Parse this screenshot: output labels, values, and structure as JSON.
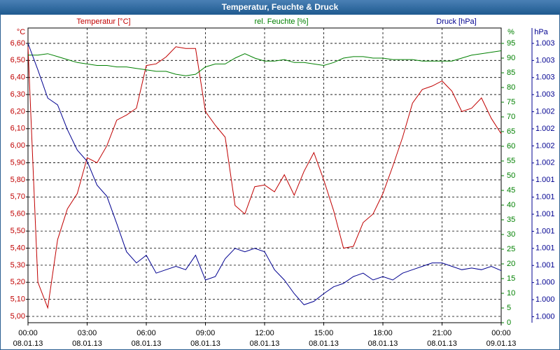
{
  "chart_data": {
    "type": "line",
    "title": "Temperatur, Feuchte & Druck",
    "x": [
      0,
      0.5,
      1,
      1.5,
      2,
      2.5,
      3,
      3.5,
      4,
      4.5,
      5,
      5.5,
      6,
      6.5,
      7,
      7.5,
      8,
      8.5,
      9,
      9.5,
      10,
      10.5,
      11,
      11.5,
      12,
      12.5,
      13,
      13.5,
      14,
      14.5,
      15,
      15.5,
      16,
      16.5,
      17,
      17.5,
      18,
      18.5,
      19,
      19.5,
      20,
      20.5,
      21,
      21.5,
      22,
      22.5,
      23,
      23.5,
      24
    ],
    "xlim": [
      0,
      24
    ],
    "xticks": [
      {
        "value": 0,
        "label": "00:00"
      },
      {
        "value": 3,
        "label": "03:00"
      },
      {
        "value": 6,
        "label": "06:00"
      },
      {
        "value": 9,
        "label": "09:00"
      },
      {
        "value": 12,
        "label": "12:00"
      },
      {
        "value": 15,
        "label": "15:00"
      },
      {
        "value": 18,
        "label": "18:00"
      },
      {
        "value": 21,
        "label": "21:00"
      },
      {
        "value": 24,
        "label": "00:00"
      }
    ],
    "xtick_dates": [
      "08.01.13",
      "08.01.13",
      "08.01.13",
      "08.01.13",
      "08.01.13",
      "08.01.13",
      "08.01.13",
      "08.01.13",
      "09.01.13"
    ],
    "y_unit": "°C",
    "y2_unit": "%",
    "y3_unit": "hPa",
    "ylim": [
      4.963,
      6.69
    ],
    "yticks": [
      {
        "value": 5.0,
        "label": "5,00"
      },
      {
        "value": 5.1,
        "label": "5,10"
      },
      {
        "value": 5.2,
        "label": "5,20"
      },
      {
        "value": 5.3,
        "label": "5,30"
      },
      {
        "value": 5.4,
        "label": "5,40"
      },
      {
        "value": 5.5,
        "label": "5,50"
      },
      {
        "value": 5.6,
        "label": "5,60"
      },
      {
        "value": 5.7,
        "label": "5,70"
      },
      {
        "value": 5.8,
        "label": "5,80"
      },
      {
        "value": 5.9,
        "label": "5,90"
      },
      {
        "value": 6.0,
        "label": "6,00"
      },
      {
        "value": 6.1,
        "label": "6,10"
      },
      {
        "value": 6.2,
        "label": "6,20"
      },
      {
        "value": 6.3,
        "label": "6,30"
      },
      {
        "value": 6.4,
        "label": "6,40"
      },
      {
        "value": 6.5,
        "label": "6,50"
      },
      {
        "value": 6.6,
        "label": "6,60"
      }
    ],
    "y2lim": [
      0,
      100.24
    ],
    "y2ticks": [
      0,
      5,
      10,
      15,
      20,
      25,
      30,
      35,
      40,
      45,
      50,
      55,
      60,
      65,
      70,
      75,
      80,
      85,
      90,
      95
    ],
    "y3lim": [
      1000.13,
      1003.58
    ],
    "y3ticks": [
      {
        "value": 1000.2,
        "label": "1.000"
      },
      {
        "value": 1000.4,
        "label": "1.000"
      },
      {
        "value": 1000.6,
        "label": "1.000"
      },
      {
        "value": 1000.8,
        "label": "1.001"
      },
      {
        "value": 1001.0,
        "label": "1.001"
      },
      {
        "value": 1001.2,
        "label": "1.001"
      },
      {
        "value": 1001.4,
        "label": "1.001"
      },
      {
        "value": 1001.6,
        "label": "1.001"
      },
      {
        "value": 1001.8,
        "label": "1.001"
      },
      {
        "value": 1002.0,
        "label": "1.002"
      },
      {
        "value": 1002.2,
        "label": "1.002"
      },
      {
        "value": 1002.4,
        "label": "1.002"
      },
      {
        "value": 1002.6,
        "label": "1.002"
      },
      {
        "value": 1002.8,
        "label": "1.003"
      },
      {
        "value": 1003.0,
        "label": "1.003"
      },
      {
        "value": 1003.2,
        "label": "1.003"
      },
      {
        "value": 1003.4,
        "label": "1.003"
      }
    ],
    "grid": true,
    "series": [
      {
        "name": "Temperatur [°C]",
        "color": "#c00000",
        "axis": "y",
        "values": [
          6.58,
          5.2,
          5.05,
          5.45,
          5.63,
          5.72,
          5.93,
          5.9,
          6.0,
          6.15,
          6.18,
          6.22,
          6.47,
          6.48,
          6.52,
          6.58,
          6.57,
          6.57,
          6.2,
          6.12,
          6.05,
          5.65,
          5.6,
          5.76,
          5.77,
          5.73,
          5.83,
          5.71,
          5.85,
          5.96,
          5.8,
          5.62,
          5.4,
          5.41,
          5.55,
          5.6,
          5.72,
          5.88,
          6.05,
          6.25,
          6.33,
          6.35,
          6.38,
          6.32,
          6.2,
          6.22,
          6.28,
          6.16,
          6.07
        ]
      },
      {
        "name": "rel. Feuchte [%]",
        "color": "#008000",
        "axis": "y2",
        "values": [
          91,
          91,
          91.5,
          90.5,
          89.5,
          88.5,
          88,
          87.5,
          87.5,
          87,
          87,
          86.5,
          86,
          85.5,
          85.5,
          84.5,
          84,
          84.5,
          87,
          88,
          88,
          90,
          91.5,
          90,
          89,
          89,
          89.5,
          88.5,
          88.5,
          88,
          87.5,
          88.5,
          90,
          90.5,
          90.5,
          90,
          90,
          89.5,
          89.5,
          89.5,
          89,
          89,
          89,
          89,
          90,
          91,
          91.5,
          92,
          92.5
        ]
      },
      {
        "name": "Druck [hPa]",
        "color": "#000090",
        "axis": "y3",
        "values": [
          1003.4,
          1003.09,
          1002.76,
          1002.68,
          1002.39,
          1002.15,
          1002.02,
          1001.74,
          1001.61,
          1001.29,
          1000.96,
          1000.83,
          1000.92,
          1000.71,
          1000.75,
          1000.79,
          1000.75,
          1000.92,
          1000.63,
          1000.67,
          1000.88,
          1001.0,
          1000.96,
          1001.0,
          1000.96,
          1000.75,
          1000.63,
          1000.47,
          1000.34,
          1000.38,
          1000.47,
          1000.55,
          1000.59,
          1000.67,
          1000.71,
          1000.63,
          1000.67,
          1000.63,
          1000.71,
          1000.75,
          1000.79,
          1000.83,
          1000.83,
          1000.79,
          1000.75,
          1000.77,
          1000.75,
          1000.79,
          1000.74
        ]
      }
    ]
  }
}
